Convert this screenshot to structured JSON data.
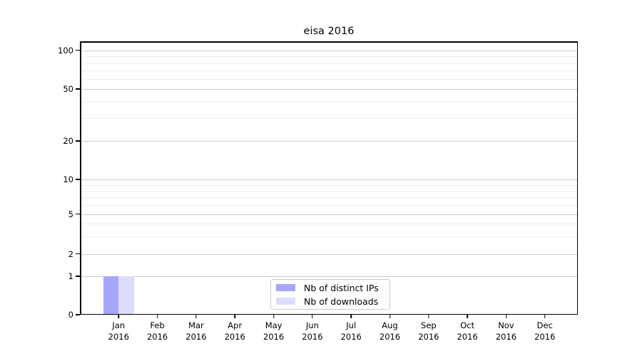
{
  "chart_data": {
    "type": "bar",
    "title": "eisa 2016",
    "categories": [
      "Jan 2016",
      "Feb 2016",
      "Mar 2016",
      "Apr 2016",
      "May 2016",
      "Jun 2016",
      "Jul 2016",
      "Aug 2016",
      "Sep 2016",
      "Oct 2016",
      "Nov 2016",
      "Dec 2016"
    ],
    "series": [
      {
        "name": "Nb of distinct IPs",
        "color": "#a7a7f7",
        "values": [
          1,
          0,
          0,
          0,
          0,
          0,
          0,
          0,
          0,
          0,
          0,
          0
        ]
      },
      {
        "name": "Nb of downloads",
        "color": "#dcdcf9",
        "values": [
          1,
          0,
          0,
          0,
          0,
          0,
          0,
          0,
          0,
          0,
          0,
          0
        ]
      }
    ],
    "yticks": [
      0,
      1,
      2,
      5,
      10,
      20,
      50,
      100
    ],
    "yminor_ticks": [
      3,
      4,
      6,
      7,
      8,
      9,
      30,
      40,
      60,
      70,
      80,
      90
    ],
    "yscale": "symlog",
    "ylim": [
      0,
      110
    ],
    "xlabel": "",
    "ylabel": "",
    "grid": true,
    "legend_position": "lower-center-inside"
  },
  "colors": {
    "background": "#ffffff",
    "spine": "#000000",
    "grid_major": "#cdcdcd",
    "grid_minor": "#ededed",
    "text": "#000000",
    "legend_border": "#cccccc"
  }
}
